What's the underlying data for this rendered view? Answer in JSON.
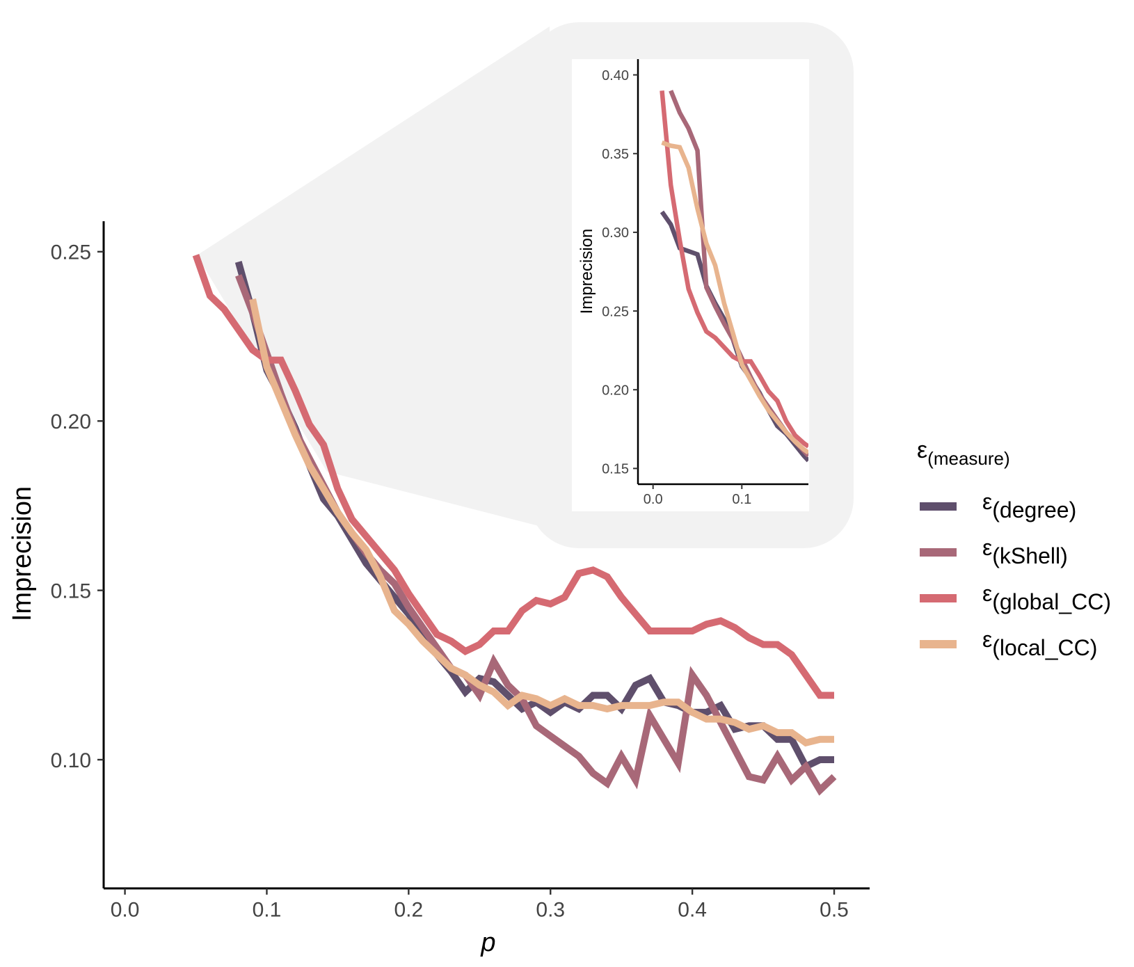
{
  "colors": {
    "degree": "#5f4f6c",
    "kShell": "#a86878",
    "global_CC": "#d56a72",
    "local_CC": "#e8b48e",
    "zoom_panel": "#f2f2f2"
  },
  "legend": {
    "title_symbol": "ε",
    "title_sub": "(measure)",
    "position": "right"
  },
  "chart_data": [
    {
      "type": "line",
      "xlabel": "p",
      "ylabel": "Imprecision",
      "xlim": [
        -0.015,
        0.525
      ],
      "ylim": [
        0.062,
        0.259
      ],
      "x_ticks": [
        0.0,
        0.1,
        0.2,
        0.3,
        0.4,
        0.5
      ],
      "x_tick_labels": [
        "0.0",
        "0.1",
        "0.2",
        "0.3",
        "0.4",
        "0.5"
      ],
      "y_ticks": [
        0.1,
        0.15,
        0.2,
        0.25
      ],
      "y_tick_labels": [
        "0.10",
        "0.15",
        "0.20",
        "0.25"
      ],
      "grid": false,
      "series": [
        {
          "key": "degree",
          "sym": "ε",
          "sub": "(degree)",
          "x": [
            0.08,
            0.09,
            0.1,
            0.11,
            0.12,
            0.13,
            0.14,
            0.15,
            0.16,
            0.17,
            0.18,
            0.19,
            0.2,
            0.21,
            0.22,
            0.23,
            0.24,
            0.25,
            0.26,
            0.27,
            0.28,
            0.29,
            0.3,
            0.31,
            0.32,
            0.33,
            0.34,
            0.35,
            0.36,
            0.37,
            0.38,
            0.39,
            0.4,
            0.41,
            0.42,
            0.43,
            0.44,
            0.45,
            0.46,
            0.47,
            0.48,
            0.49,
            0.5
          ],
          "y": [
            0.247,
            0.232,
            0.215,
            0.207,
            0.198,
            0.187,
            0.177,
            0.172,
            0.165,
            0.158,
            0.153,
            0.148,
            0.143,
            0.137,
            0.131,
            0.126,
            0.12,
            0.124,
            0.123,
            0.119,
            0.115,
            0.117,
            0.114,
            0.117,
            0.115,
            0.119,
            0.119,
            0.115,
            0.122,
            0.124,
            0.117,
            0.116,
            0.114,
            0.114,
            0.116,
            0.109,
            0.11,
            0.11,
            0.106,
            0.106,
            0.098,
            0.1,
            0.1
          ]
        },
        {
          "key": "kShell",
          "sym": "ε",
          "sub": "(kShell)",
          "x": [
            0.08,
            0.09,
            0.1,
            0.11,
            0.12,
            0.13,
            0.14,
            0.15,
            0.16,
            0.17,
            0.18,
            0.19,
            0.2,
            0.21,
            0.22,
            0.23,
            0.24,
            0.25,
            0.26,
            0.27,
            0.28,
            0.29,
            0.3,
            0.31,
            0.32,
            0.33,
            0.34,
            0.35,
            0.36,
            0.37,
            0.38,
            0.39,
            0.4,
            0.41,
            0.42,
            0.43,
            0.44,
            0.45,
            0.46,
            0.47,
            0.48,
            0.49,
            0.5
          ],
          "y": [
            0.243,
            0.232,
            0.22,
            0.208,
            0.197,
            0.189,
            0.181,
            0.173,
            0.167,
            0.161,
            0.156,
            0.152,
            0.145,
            0.139,
            0.133,
            0.127,
            0.125,
            0.119,
            0.129,
            0.122,
            0.118,
            0.11,
            0.107,
            0.104,
            0.101,
            0.096,
            0.093,
            0.101,
            0.094,
            0.113,
            0.106,
            0.099,
            0.125,
            0.119,
            0.111,
            0.103,
            0.095,
            0.094,
            0.101,
            0.094,
            0.098,
            0.091,
            0.095
          ]
        },
        {
          "key": "global_CC",
          "sym": "ε",
          "sub": "(global_CC)",
          "x": [
            0.05,
            0.06,
            0.07,
            0.08,
            0.09,
            0.1,
            0.11,
            0.12,
            0.13,
            0.14,
            0.15,
            0.16,
            0.17,
            0.18,
            0.19,
            0.2,
            0.21,
            0.22,
            0.23,
            0.24,
            0.25,
            0.26,
            0.27,
            0.28,
            0.29,
            0.3,
            0.31,
            0.32,
            0.33,
            0.34,
            0.35,
            0.36,
            0.37,
            0.38,
            0.39,
            0.4,
            0.41,
            0.42,
            0.43,
            0.44,
            0.45,
            0.46,
            0.47,
            0.48,
            0.49,
            0.5
          ],
          "y": [
            0.249,
            0.237,
            0.233,
            0.227,
            0.221,
            0.218,
            0.218,
            0.209,
            0.199,
            0.193,
            0.18,
            0.171,
            0.166,
            0.161,
            0.156,
            0.149,
            0.143,
            0.137,
            0.135,
            0.132,
            0.134,
            0.138,
            0.138,
            0.144,
            0.147,
            0.146,
            0.148,
            0.155,
            0.156,
            0.154,
            0.148,
            0.143,
            0.138,
            0.138,
            0.138,
            0.138,
            0.14,
            0.141,
            0.139,
            0.136,
            0.134,
            0.134,
            0.131,
            0.125,
            0.119,
            0.119
          ]
        },
        {
          "key": "local_CC",
          "sym": "ε",
          "sub": "(local_CC)",
          "x": [
            0.09,
            0.1,
            0.11,
            0.12,
            0.13,
            0.14,
            0.15,
            0.16,
            0.17,
            0.18,
            0.19,
            0.2,
            0.21,
            0.22,
            0.23,
            0.24,
            0.25,
            0.26,
            0.27,
            0.28,
            0.29,
            0.3,
            0.31,
            0.32,
            0.33,
            0.34,
            0.35,
            0.36,
            0.37,
            0.38,
            0.39,
            0.4,
            0.41,
            0.42,
            0.43,
            0.44,
            0.45,
            0.46,
            0.47,
            0.48,
            0.49,
            0.5
          ],
          "y": [
            0.236,
            0.216,
            0.206,
            0.196,
            0.187,
            0.18,
            0.173,
            0.167,
            0.162,
            0.154,
            0.144,
            0.14,
            0.135,
            0.131,
            0.127,
            0.125,
            0.122,
            0.12,
            0.116,
            0.119,
            0.118,
            0.116,
            0.118,
            0.116,
            0.116,
            0.115,
            0.116,
            0.116,
            0.116,
            0.117,
            0.117,
            0.114,
            0.112,
            0.112,
            0.111,
            0.109,
            0.11,
            0.108,
            0.108,
            0.105,
            0.106,
            0.106
          ]
        }
      ]
    },
    {
      "type": "line",
      "xlabel": "",
      "ylabel": "Imprecision",
      "xlim": [
        -0.017,
        0.175
      ],
      "ylim": [
        0.14,
        0.41
      ],
      "x_ticks": [
        0.0,
        0.1
      ],
      "x_tick_labels": [
        "0.0",
        "0.1"
      ],
      "y_ticks": [
        0.15,
        0.2,
        0.25,
        0.3,
        0.35,
        0.4
      ],
      "y_tick_labels": [
        "0.15",
        "0.20",
        "0.25",
        "0.30",
        "0.35",
        "0.40"
      ],
      "grid": false,
      "series": [
        {
          "key": "degree",
          "x": [
            0.01,
            0.02,
            0.03,
            0.04,
            0.05,
            0.06,
            0.07,
            0.08,
            0.09,
            0.1,
            0.11,
            0.12,
            0.13,
            0.14,
            0.15,
            0.16,
            0.17,
            0.175
          ],
          "y": [
            0.313,
            0.305,
            0.29,
            0.288,
            0.286,
            0.266,
            0.255,
            0.245,
            0.232,
            0.215,
            0.207,
            0.198,
            0.187,
            0.177,
            0.172,
            0.165,
            0.158,
            0.155
          ]
        },
        {
          "key": "kShell",
          "x": [
            0.02,
            0.03,
            0.04,
            0.05,
            0.06,
            0.07,
            0.08,
            0.09,
            0.1,
            0.11,
            0.12,
            0.13,
            0.14,
            0.15,
            0.16,
            0.17,
            0.175
          ],
          "y": [
            0.39,
            0.376,
            0.366,
            0.352,
            0.265,
            0.253,
            0.242,
            0.232,
            0.22,
            0.208,
            0.197,
            0.189,
            0.181,
            0.173,
            0.167,
            0.161,
            0.158
          ]
        },
        {
          "key": "global_CC",
          "x": [
            0.01,
            0.02,
            0.03,
            0.04,
            0.05,
            0.06,
            0.07,
            0.08,
            0.09,
            0.1,
            0.11,
            0.12,
            0.13,
            0.14,
            0.15,
            0.16,
            0.17,
            0.175
          ],
          "y": [
            0.39,
            0.33,
            0.295,
            0.264,
            0.249,
            0.237,
            0.233,
            0.227,
            0.221,
            0.218,
            0.218,
            0.209,
            0.199,
            0.193,
            0.18,
            0.171,
            0.166,
            0.164
          ]
        },
        {
          "key": "local_CC",
          "x": [
            0.01,
            0.02,
            0.03,
            0.04,
            0.05,
            0.06,
            0.07,
            0.08,
            0.09,
            0.1,
            0.11,
            0.12,
            0.13,
            0.14,
            0.15,
            0.16,
            0.17,
            0.175
          ],
          "y": [
            0.357,
            0.355,
            0.354,
            0.341,
            0.315,
            0.293,
            0.279,
            0.255,
            0.236,
            0.216,
            0.206,
            0.196,
            0.187,
            0.18,
            0.173,
            0.167,
            0.162,
            0.16
          ]
        }
      ]
    }
  ]
}
